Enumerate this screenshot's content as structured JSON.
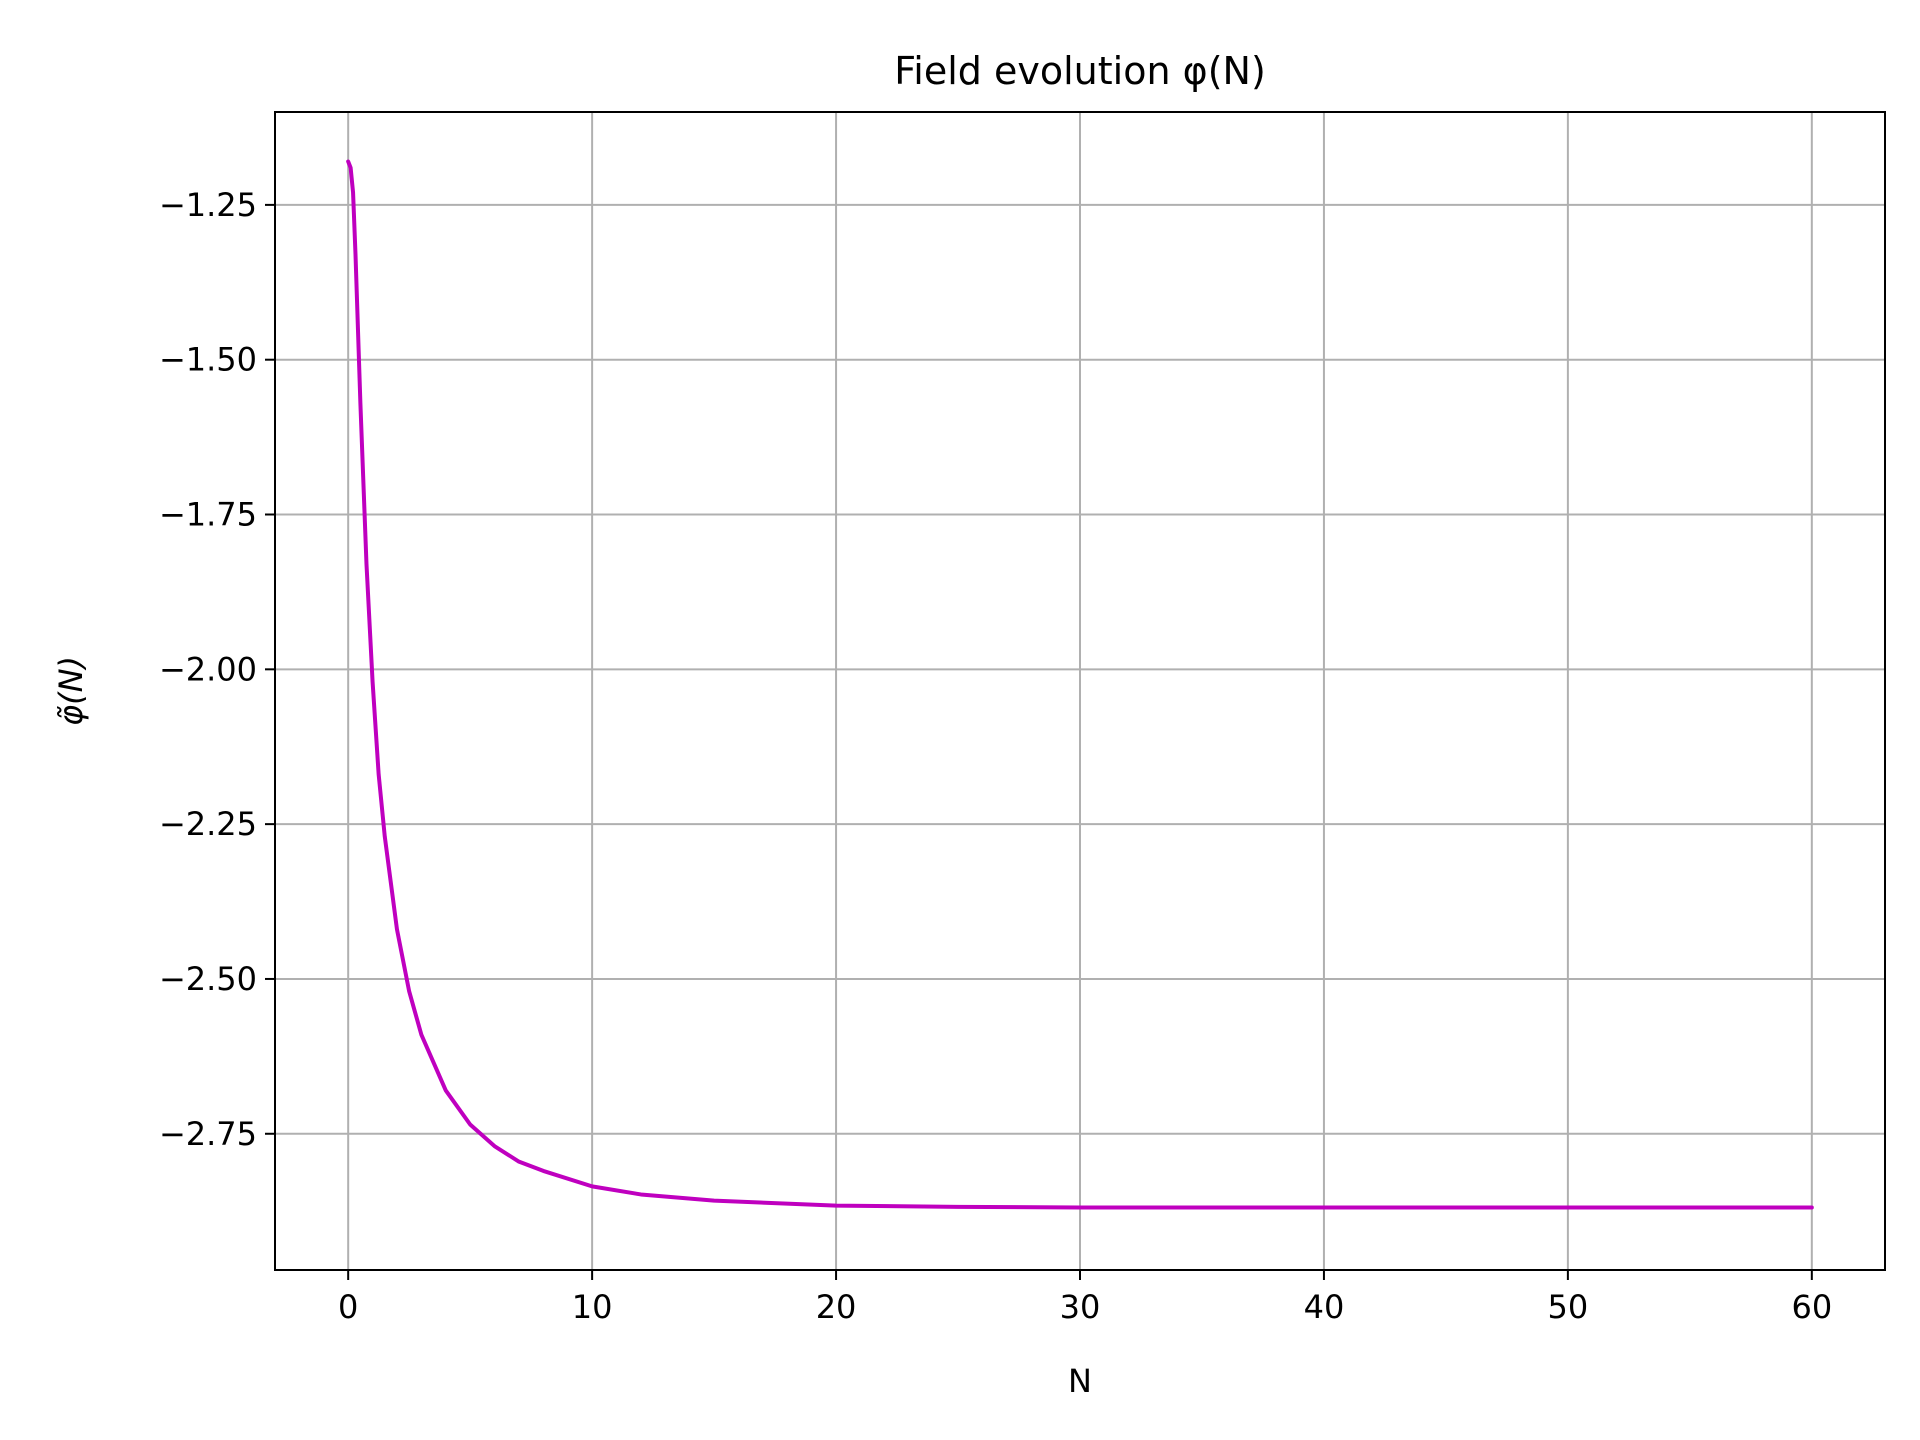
{
  "chart_data": {
    "type": "line",
    "title": "Field evolution φ(N)",
    "xlabel": "N",
    "ylabel": "φ̃(N)",
    "xlim": [
      -3,
      63
    ],
    "ylim": [
      -2.97,
      -1.1
    ],
    "xticks": [
      0,
      10,
      20,
      30,
      40,
      50,
      60
    ],
    "xtick_labels": [
      "0",
      "10",
      "20",
      "30",
      "40",
      "50",
      "60"
    ],
    "yticks": [
      -1.25,
      -1.5,
      -1.75,
      -2.0,
      -2.25,
      -2.5,
      -2.75
    ],
    "ytick_labels": [
      "−1.25",
      "−1.50",
      "−1.75",
      "−2.00",
      "−2.25",
      "−2.50",
      "−2.75"
    ],
    "grid": true,
    "series": [
      {
        "color": "#bf00bf",
        "x": [
          0,
          0.1,
          0.2,
          0.3,
          0.5,
          0.75,
          1,
          1.25,
          1.5,
          2,
          2.5,
          3,
          4,
          5,
          6,
          7,
          8,
          10,
          12,
          15,
          20,
          25,
          30,
          40,
          50,
          60
        ],
        "y": [
          -1.18,
          -1.19,
          -1.23,
          -1.33,
          -1.57,
          -1.83,
          -2.02,
          -2.17,
          -2.27,
          -2.42,
          -2.52,
          -2.59,
          -2.68,
          -2.735,
          -2.77,
          -2.795,
          -2.81,
          -2.835,
          -2.848,
          -2.858,
          -2.866,
          -2.868,
          -2.869,
          -2.869,
          -2.869,
          -2.869
        ]
      }
    ]
  }
}
